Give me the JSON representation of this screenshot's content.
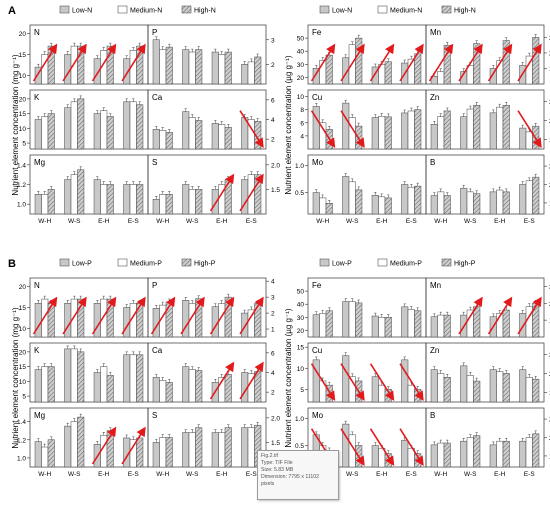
{
  "figure": {
    "sections": [
      {
        "letter": "A",
        "legend": [
          "Low-N",
          "Medium-N",
          "High-N"
        ],
        "ylabel_left": "Nutrient element concentration (mg g⁻¹)",
        "ylabel_right": "Nutrient element concentration (µg g⁻¹)",
        "groups": [
          "W-H",
          "W-S",
          "E-H",
          "E-S"
        ],
        "panels": [
          {
            "label": "N",
            "ticks_l": [
              "10",
              "15",
              "20"
            ],
            "ticks_r": [],
            "ymin": 8,
            "ymax": 22,
            "values": [
              [
                12,
                15,
                17
              ],
              [
                15,
                17,
                17
              ],
              [
                14,
                16,
                17
              ],
              [
                14,
                16,
                17
              ]
            ],
            "arrows": "up"
          },
          {
            "label": "P",
            "ticks_l": [],
            "ticks_r": [
              "2",
              "3"
            ],
            "ymin": 1.2,
            "ymax": 3.6,
            "values": [
              [
                3.0,
                2.6,
                2.7
              ],
              [
                2.6,
                2.5,
                2.6
              ],
              [
                2.5,
                2.4,
                2.5
              ],
              [
                2.0,
                2.1,
                2.3
              ]
            ],
            "arrows": "none"
          },
          {
            "label": "K",
            "ticks_l": [
              "5",
              "10",
              "15",
              "20"
            ],
            "ticks_r": [],
            "ymin": 3,
            "ymax": 23,
            "values": [
              [
                13,
                14,
                15
              ],
              [
                17,
                19,
                20
              ],
              [
                15,
                16,
                14
              ],
              [
                19,
                19,
                18
              ]
            ],
            "arrows": "none"
          },
          {
            "label": "Ca",
            "ticks_l": [],
            "ticks_r": [
              "2",
              "4",
              "6"
            ],
            "ymin": 1,
            "ymax": 7,
            "values": [
              [
                3.0,
                2.9,
                2.7
              ],
              [
                4.8,
                4.2,
                3.9
              ],
              [
                3.6,
                3.5,
                3.2
              ],
              [
                4.2,
                4.0,
                3.8
              ]
            ],
            "arrows": "down-last"
          },
          {
            "label": "Mg",
            "ticks_l": [
              "1.0",
              "1.2",
              "1.4"
            ],
            "ticks_r": [],
            "ymin": 0.9,
            "ymax": 1.5,
            "values": [
              [
                1.1,
                1.1,
                1.15
              ],
              [
                1.25,
                1.3,
                1.35
              ],
              [
                1.25,
                1.2,
                1.2
              ],
              [
                1.2,
                1.2,
                1.2
              ]
            ],
            "arrows": "none"
          },
          {
            "label": "S",
            "ticks_l": [],
            "ticks_r": [
              "1.5",
              "2.0"
            ],
            "ymin": 1.0,
            "ymax": 2.2,
            "values": [
              [
                1.3,
                1.4,
                1.4
              ],
              [
                1.6,
                1.5,
                1.5
              ],
              [
                1.5,
                1.6,
                1.7
              ],
              [
                1.7,
                1.8,
                1.8
              ]
            ],
            "arrows": "up-last2"
          },
          {
            "label": "Fe",
            "ticks_l": [
              "20",
              "30",
              "40",
              "50"
            ],
            "ticks_r": [],
            "ymin": 15,
            "ymax": 60,
            "values": [
              [
                27,
                33,
                37
              ],
              [
                35,
                45,
                50
              ],
              [
                28,
                30,
                32
              ],
              [
                31,
                34,
                38
              ]
            ],
            "arrows": "up"
          },
          {
            "label": "Mn",
            "ticks_l": [],
            "ticks_r": [
              "10",
              "20",
              "30"
            ],
            "ymin": 0,
            "ymax": 38,
            "values": [
              [
                5,
                8,
                25
              ],
              [
                8,
                12,
                26
              ],
              [
                10,
                15,
                28
              ],
              [
                12,
                18,
                30
              ]
            ],
            "arrows": "up"
          },
          {
            "label": "Cu",
            "ticks_l": [
              "4",
              "6",
              "8",
              "10"
            ],
            "ticks_r": [],
            "ymin": 2,
            "ymax": 11,
            "values": [
              [
                8.5,
                6,
                5
              ],
              [
                9,
                6.8,
                5.5
              ],
              [
                6.8,
                7,
                6.9
              ],
              [
                7.5,
                7.8,
                8
              ]
            ],
            "arrows": "down-first2"
          },
          {
            "label": "Zn",
            "ticks_l": [],
            "ticks_r": [
              "10",
              "20",
              "30"
            ],
            "ymin": 5,
            "ymax": 36,
            "values": [
              [
                18,
                22,
                25
              ],
              [
                22,
                26,
                28
              ],
              [
                24,
                27,
                28
              ],
              [
                16,
                14,
                17
              ]
            ],
            "arrows": "down-last"
          },
          {
            "label": "Mo",
            "ticks_l": [
              "0.5",
              "1.0"
            ],
            "ticks_r": [],
            "ymin": 0.1,
            "ymax": 1.2,
            "values": [
              [
                0.5,
                0.4,
                0.3
              ],
              [
                0.8,
                0.7,
                0.55
              ],
              [
                0.45,
                0.42,
                0.4
              ],
              [
                0.65,
                0.6,
                0.62
              ]
            ],
            "arrows": "none"
          },
          {
            "label": "B",
            "ticks_l": [],
            "ticks_r": [
              "15",
              "20",
              "25"
            ],
            "ymin": 12,
            "ymax": 28,
            "values": [
              [
                17,
                18,
                17
              ],
              [
                19,
                18,
                17.5
              ],
              [
                18,
                18.5,
                18
              ],
              [
                20,
                21,
                22
              ]
            ],
            "arrows": "none"
          }
        ]
      },
      {
        "letter": "B",
        "legend": [
          "Low-P",
          "Medium-P",
          "High-P"
        ],
        "ylabel_left": "Nutrient element concentration (mg g⁻¹)",
        "ylabel_right": "Nutrient element concentration (µg g⁻¹)",
        "groups": [
          "W-H",
          "W-S",
          "E-H",
          "E-S"
        ],
        "panels": [
          {
            "label": "N",
            "ticks_l": [
              "10",
              "15",
              "20"
            ],
            "ticks_r": [],
            "ymin": 8,
            "ymax": 22,
            "values": [
              [
                16,
                17,
                16
              ],
              [
                16,
                17,
                17
              ],
              [
                16,
                17,
                17
              ],
              [
                15,
                16,
                16
              ]
            ],
            "arrows": "up"
          },
          {
            "label": "P",
            "ticks_l": [],
            "ticks_r": [
              "1",
              "2",
              "3",
              "4"
            ],
            "ymin": 0.5,
            "ymax": 4.2,
            "values": [
              [
                2.3,
                2.5,
                2.7
              ],
              [
                2.8,
                2.6,
                2.9
              ],
              [
                2.4,
                2.6,
                3.0
              ],
              [
                2.0,
                2.2,
                2.6
              ]
            ],
            "arrows": "up"
          },
          {
            "label": "K",
            "ticks_l": [
              "5",
              "10",
              "15",
              "20"
            ],
            "ticks_r": [],
            "ymin": 3,
            "ymax": 23,
            "values": [
              [
                14,
                15,
                15
              ],
              [
                21,
                21,
                20
              ],
              [
                13,
                15,
                12
              ],
              [
                19,
                19,
                19
              ]
            ],
            "arrows": "none"
          },
          {
            "label": "Ca",
            "ticks_l": [],
            "ticks_r": [
              "2",
              "4",
              "6"
            ],
            "ymin": 1,
            "ymax": 7,
            "values": [
              [
                3.5,
                3.2,
                3.0
              ],
              [
                4.6,
                4.3,
                4.2
              ],
              [
                3.0,
                3.5,
                3.8
              ],
              [
                4.0,
                3.9,
                4.1
              ]
            ],
            "arrows": "up-last2"
          },
          {
            "label": "Mg",
            "ticks_l": [
              "1.0",
              "1.2",
              "1.4"
            ],
            "ticks_r": [],
            "ymin": 0.9,
            "ymax": 1.55,
            "values": [
              [
                1.18,
                1.12,
                1.2
              ],
              [
                1.35,
                1.4,
                1.45
              ],
              [
                1.15,
                1.25,
                1.3
              ],
              [
                1.22,
                1.2,
                1.22
              ]
            ],
            "arrows": "up-last2"
          },
          {
            "label": "S",
            "ticks_l": [],
            "ticks_r": [
              "1.5",
              "2.0"
            ],
            "ymin": 1.0,
            "ymax": 2.2,
            "values": [
              [
                1.5,
                1.6,
                1.6
              ],
              [
                1.7,
                1.7,
                1.8
              ],
              [
                1.7,
                1.7,
                1.8
              ],
              [
                1.8,
                1.8,
                1.85
              ]
            ],
            "arrows": "none"
          },
          {
            "label": "Fe",
            "ticks_l": [
              "20",
              "30",
              "40",
              "50"
            ],
            "ticks_r": [],
            "ymin": 15,
            "ymax": 60,
            "values": [
              [
                32,
                33,
                35
              ],
              [
                42,
                42,
                41
              ],
              [
                31,
                30,
                30
              ],
              [
                38,
                36,
                35
              ]
            ],
            "arrows": "none"
          },
          {
            "label": "Mn",
            "ticks_l": [],
            "ticks_r": [
              "10",
              "20",
              "30"
            ],
            "ymin": 0,
            "ymax": 35,
            "values": [
              [
                12,
                13,
                13
              ],
              [
                13,
                16,
                18
              ],
              [
                12,
                14,
                16
              ],
              [
                14,
                18,
                20
              ]
            ],
            "arrows": "up-last3"
          },
          {
            "label": "Cu",
            "ticks_l": [
              "5",
              "10",
              "15"
            ],
            "ticks_r": [],
            "ymin": 2,
            "ymax": 16,
            "values": [
              [
                12,
                7,
                6
              ],
              [
                13,
                8,
                7
              ],
              [
                8,
                6,
                5
              ],
              [
                12,
                6,
                5
              ]
            ],
            "arrows": "down"
          },
          {
            "label": "Zn",
            "ticks_l": [],
            "ticks_r": [
              "10",
              "20",
              "30"
            ],
            "ymin": 5,
            "ymax": 36,
            "values": [
              [
                22,
                20,
                18
              ],
              [
                24,
                19,
                16
              ],
              [
                22,
                21,
                20
              ],
              [
                22,
                18,
                17
              ]
            ],
            "arrows": "none"
          },
          {
            "label": "Mo",
            "ticks_l": [
              "0.5",
              "1.0"
            ],
            "ticks_r": [],
            "ymin": 0.1,
            "ymax": 1.2,
            "values": [
              [
                0.7,
                0.5,
                0.4
              ],
              [
                0.9,
                0.7,
                0.5
              ],
              [
                0.5,
                0.45,
                0.35
              ],
              [
                0.6,
                0.45,
                0.35
              ]
            ],
            "arrows": "down"
          },
          {
            "label": "B",
            "ticks_l": [],
            "ticks_r": [
              "15",
              "20",
              "25"
            ],
            "ymin": 12,
            "ymax": 28,
            "values": [
              [
                18,
                18.5,
                18.5
              ],
              [
                19,
                20,
                20.5
              ],
              [
                18,
                19,
                19
              ],
              [
                19,
                20,
                21
              ]
            ],
            "arrows": "none"
          }
        ]
      }
    ]
  },
  "tooltip": {
    "line1": "Fig.2.tif",
    "line2": "Type: TIF File",
    "line3": "Size: 5.83 MB",
    "line4": "Dimension: 7795 x 11102",
    "line5": "pixels"
  },
  "colors": {
    "low": "#c8c8c8",
    "medium": "#ffffff",
    "high": "#9a9a9a",
    "arrow": "#e31a1c",
    "axis": "#333333"
  }
}
